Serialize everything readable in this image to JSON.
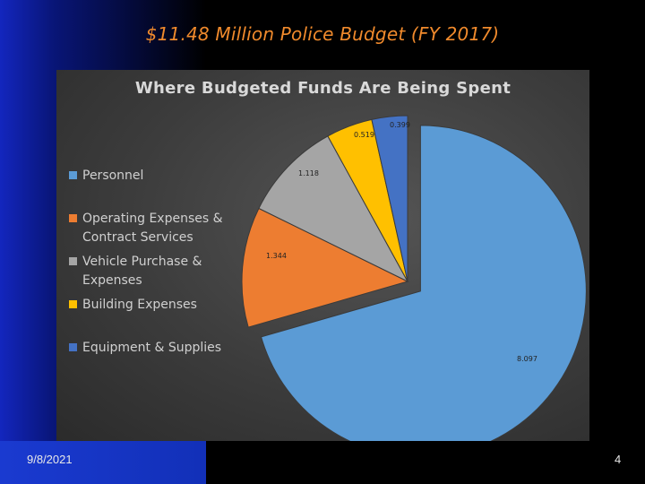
{
  "slide": {
    "title": "$11.48 Million Police Budget (FY 2017)",
    "date": "9/8/2021",
    "page_number": "4"
  },
  "chart_data": {
    "type": "pie",
    "title": "Where Budgeted Funds Are Being Spent",
    "legend_position": "left",
    "series": [
      {
        "name": "Personnel",
        "value": 8.097,
        "label": "8.097",
        "color": "#5b9bd5"
      },
      {
        "name": "Operating Expenses & Contract Services",
        "value": 1.344,
        "label": "1.344",
        "color": "#ed7d31"
      },
      {
        "name": "Vehicle Purchase & Expenses",
        "value": 1.118,
        "label": "1.118",
        "color": "#a5a5a5"
      },
      {
        "name": "Building Expenses",
        "value": 0.519,
        "label": "0.519",
        "color": "#ffc000"
      },
      {
        "name": "Equipment & Supplies",
        "value": 0.399,
        "label": "0.399",
        "color": "#4472c4"
      }
    ]
  },
  "legend": {
    "lines": [
      [
        "Personnel"
      ],
      [
        "Operating Expenses &",
        "Contract Services"
      ],
      [
        "Vehicle Purchase &",
        "Expenses"
      ],
      [
        "Building Expenses"
      ],
      [
        "Equipment & Supplies"
      ]
    ]
  }
}
